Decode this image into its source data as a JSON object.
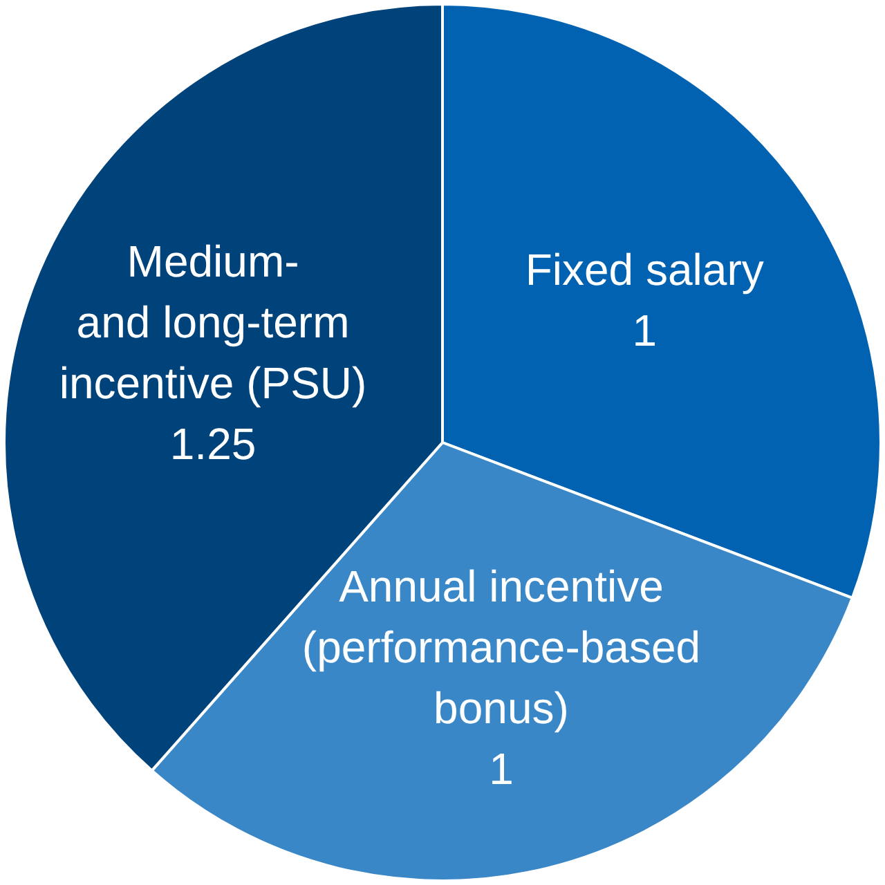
{
  "chart_data": {
    "type": "pie",
    "categories": [
      "Fixed salary",
      "Annual incentive\n(performance-based\nbonus)",
      "Medium-\nand long-term\nincentive (PSU)"
    ],
    "values": [
      1,
      1,
      1.25
    ],
    "colors": [
      "#0062b1",
      "#3a87c8",
      "#00427a"
    ],
    "data_labels": true,
    "legend": false
  }
}
